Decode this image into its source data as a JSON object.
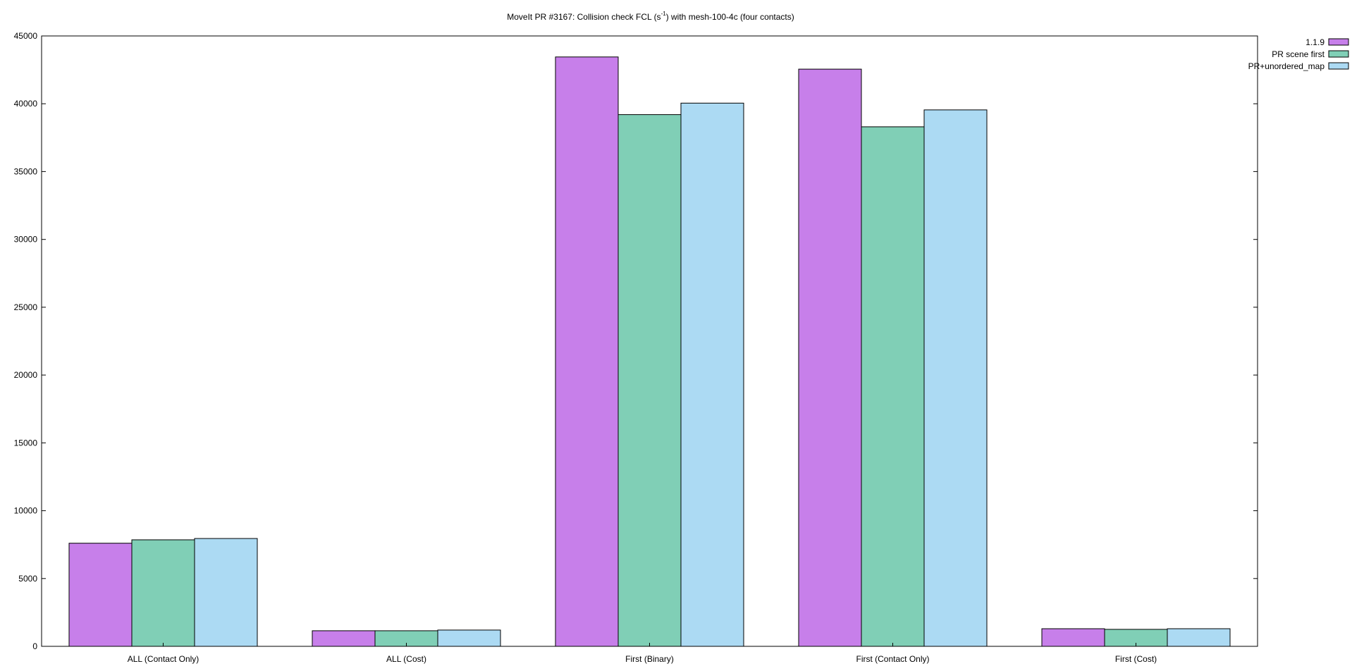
{
  "chart_data": {
    "type": "bar",
    "title": {
      "main": "MoveIt PR #3167: Collision check FCL (s",
      "superscript": "-1",
      "rest": ") with mesh-100-4c (four contacts)"
    },
    "xlabel": "",
    "ylabel": "",
    "ylim": [
      0,
      45000
    ],
    "yticks": [
      0,
      5000,
      10000,
      15000,
      20000,
      25000,
      30000,
      35000,
      40000,
      45000
    ],
    "categories": [
      "ALL (Contact Only)",
      "ALL (Cost)",
      "First (Binary)",
      "First (Contact Only)",
      "First (Cost)"
    ],
    "series": [
      {
        "name": "1.1.9",
        "color": "#c77fea",
        "values": [
          7600,
          1150,
          43450,
          42550,
          1300
        ]
      },
      {
        "name": "PR scene first",
        "color": "#80cfb6",
        "values": [
          7850,
          1150,
          39200,
          38300,
          1250
        ]
      },
      {
        "name": "PR+unordered_map",
        "color": "#acdaf3",
        "values": [
          7950,
          1200,
          40050,
          39550,
          1300
        ]
      }
    ],
    "grid": false,
    "legend_position": "top-right"
  }
}
